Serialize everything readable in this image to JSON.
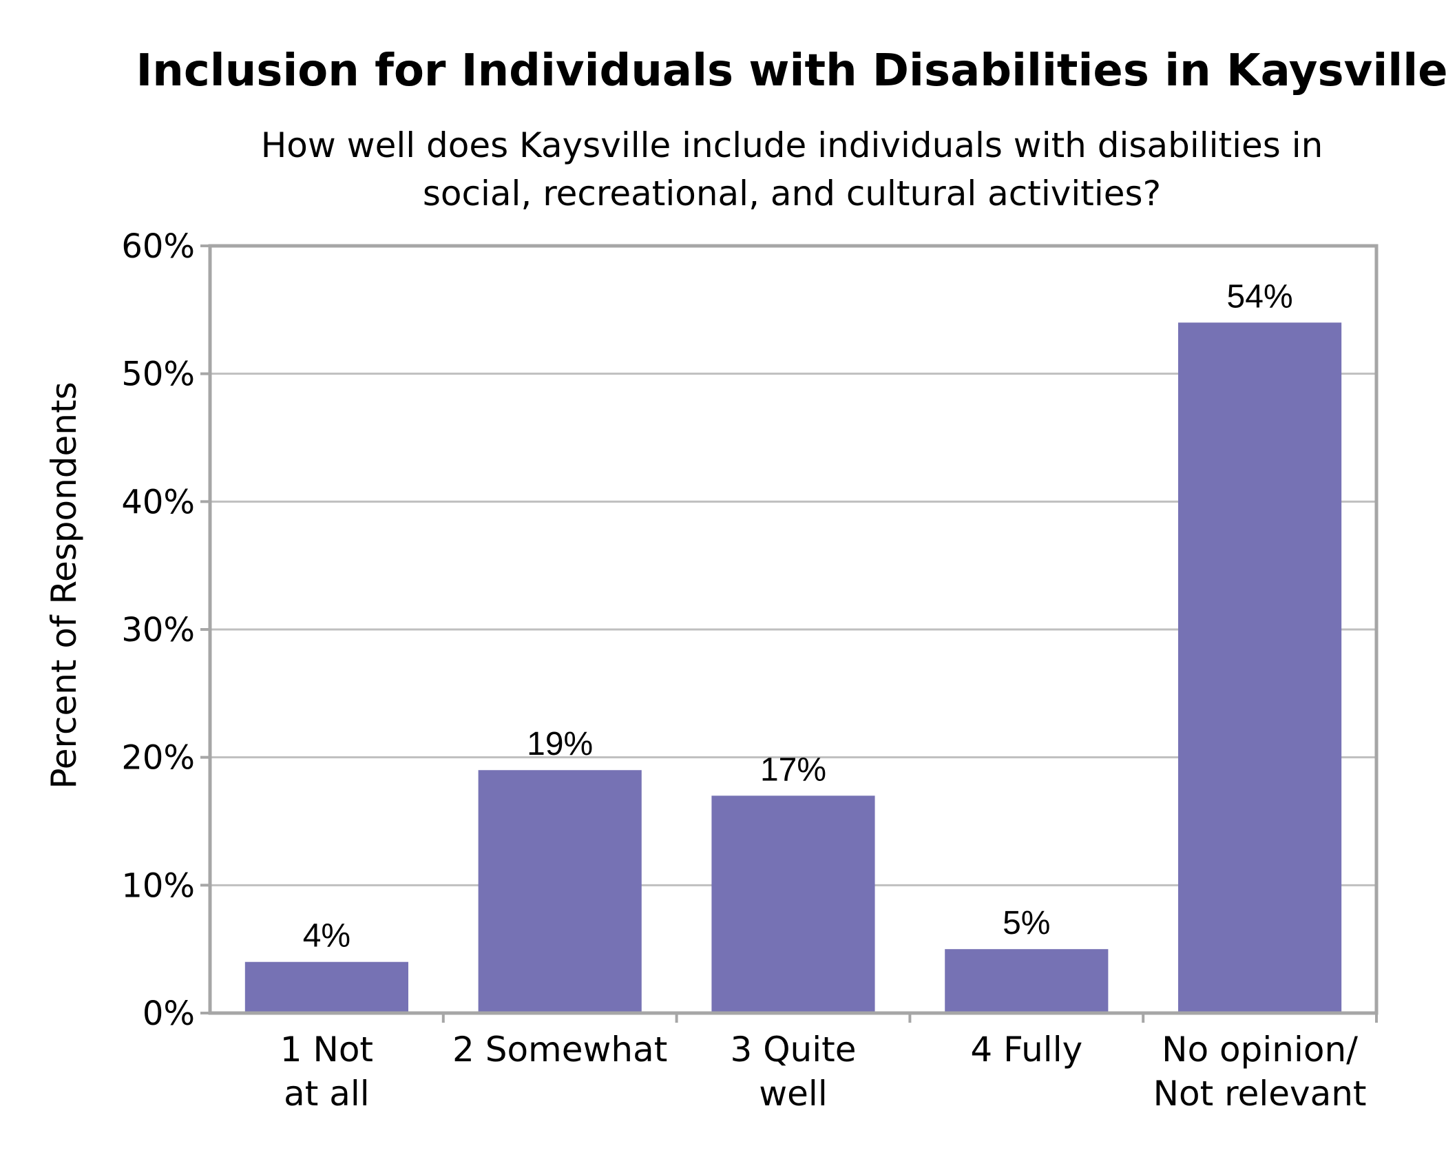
{
  "chart_data": {
    "type": "bar",
    "title": "Inclusion for Individuals with Disabilities in Kaysville",
    "subtitle_lines": [
      "How well does Kaysville include individuals with disabilities in",
      "social, recreational, and cultural activities?"
    ],
    "ylabel": "Percent of Respondents",
    "xlabel": "",
    "ylim": [
      0,
      60
    ],
    "yticks": [
      0,
      10,
      20,
      30,
      40,
      50,
      60
    ],
    "ytick_labels": [
      "0%",
      "10%",
      "20%",
      "30%",
      "40%",
      "50%",
      "60%"
    ],
    "categories": [
      [
        "1 Not",
        "at all"
      ],
      [
        "2 Somewhat"
      ],
      [
        "3 Quite",
        "well"
      ],
      [
        "4 Fully"
      ],
      [
        "No opinion/",
        "Not relevant"
      ]
    ],
    "values": [
      4,
      19,
      17,
      5,
      54
    ],
    "data_labels": [
      "4%",
      "19%",
      "17%",
      "5%",
      "54%"
    ],
    "bar_color": "#7672b4",
    "grid": true,
    "legend": "none"
  }
}
